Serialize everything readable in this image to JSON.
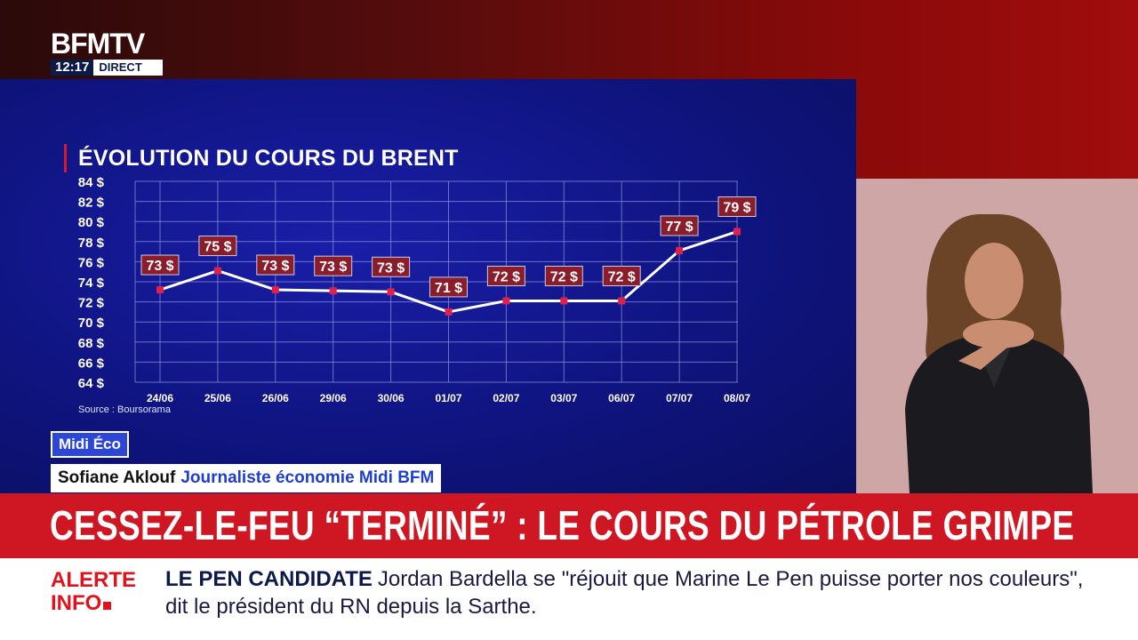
{
  "channel": {
    "logo": "BFMTV",
    "time": "12:17",
    "live_label": "DIRECT"
  },
  "chart_title": "ÉVOLUTION DU COURS DU BRENT",
  "source": "Source : Boursorama",
  "chart_data": {
    "type": "line",
    "title": "ÉVOLUTION DU COURS DU BRENT",
    "categories": [
      "24/06",
      "25/06",
      "26/06",
      "29/06",
      "30/06",
      "01/07",
      "02/07",
      "03/07",
      "06/07",
      "07/07",
      "08/07"
    ],
    "values": [
      73.2,
      75.1,
      73.2,
      73.1,
      73.0,
      71.0,
      72.1,
      72.1,
      72.1,
      77.1,
      79.0
    ],
    "data_labels": [
      "73 $",
      "75 $",
      "73 $",
      "73 $",
      "73 $",
      "71 $",
      "72 $",
      "72 $",
      "72 $",
      "77 $",
      "79 $"
    ],
    "y_ticks": [
      64,
      66,
      68,
      70,
      72,
      74,
      76,
      78,
      80,
      82,
      84
    ],
    "y_tick_labels": [
      "64 $",
      "66 $",
      "68 $",
      "70 $",
      "72 $",
      "74 $",
      "76 $",
      "78 $",
      "80 $",
      "82 $",
      "84 $"
    ],
    "ylim": [
      64,
      84
    ],
    "grid": true,
    "xlabel": "",
    "ylabel": ""
  },
  "show": {
    "tag": "Midi Éco"
  },
  "byline": {
    "name": "Sofiane Aklouf",
    "role": "Journaliste économie Midi BFM"
  },
  "headline": "CESSEZ-LE-FEU “TERMINÉ” : LE COURS DU PÉTROLE GRIMPE",
  "ticker": {
    "alert_line1": "ALERTE",
    "alert_line2": "INFO",
    "kicker": "LE PEN CANDIDATE",
    "text": "Jordan Bardella se \"réjouit que Marine Le Pen puisse porter nos couleurs\", dit le président du RN depuis la Sarthe."
  },
  "colors": {
    "panel": "#0f1480",
    "accent": "#d6192f",
    "line": "#ffffff",
    "marker": "#e0204a",
    "label_bg": "#8b1c2a",
    "headline": "#cf1623"
  }
}
